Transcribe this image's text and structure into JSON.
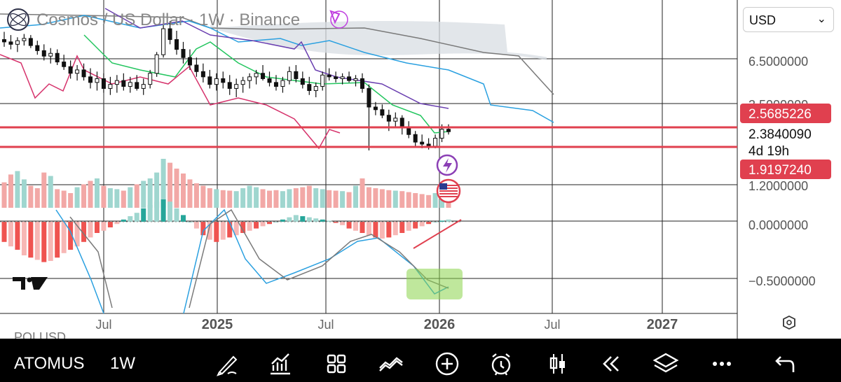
{
  "header": {
    "title": "Cosmos / US Dollar · 1W · Binance"
  },
  "currency": {
    "label": "USD"
  },
  "price_labels": {
    "p_upper": "2.5685226",
    "p_current": "2.3840090",
    "countdown": "4d 19h",
    "p_lower": "1.9197240"
  },
  "bottom_bar": {
    "symbol": "ATOMUS",
    "timeframe": "1W",
    "partial_label": "POLUSD"
  },
  "colors": {
    "up": "#26a69a",
    "down": "#ef5350",
    "red_line": "#e0404f",
    "cloud": "#d8dde3",
    "kijun": "#6a3fb0",
    "tenkan": "#22c55e",
    "chikou": "#d6336c",
    "senkou_b": "#7a7a7a",
    "senkou_a": "#2aa0e0"
  },
  "chart_data": {
    "type": "candlestick",
    "title": "Cosmos / US Dollar · 1W · Binance",
    "x_ticks": [
      "Jul",
      "2025",
      "Jul",
      "2026",
      "Jul",
      "2027"
    ],
    "y_ticks": [
      "6.5000000",
      "3.5000000",
      "1.2000000",
      "0.0000000",
      "−0.5000000"
    ],
    "horizontal_levels": [
      2.5685226,
      1.919724
    ],
    "current_price": 2.384009,
    "scale": "log",
    "candles_ohlc": [
      [
        7.2,
        7.9,
        6.6,
        7.0
      ],
      [
        7.0,
        7.6,
        6.4,
        6.8
      ],
      [
        6.8,
        7.4,
        6.2,
        7.1
      ],
      [
        7.1,
        7.7,
        6.7,
        7.3
      ],
      [
        7.3,
        7.6,
        6.5,
        6.7
      ],
      [
        6.7,
        7.1,
        6.0,
        6.3
      ],
      [
        6.3,
        6.8,
        5.6,
        5.9
      ],
      [
        5.9,
        6.5,
        5.4,
        6.1
      ],
      [
        6.1,
        6.4,
        5.3,
        5.5
      ],
      [
        5.5,
        6.0,
        5.0,
        5.2
      ],
      [
        5.2,
        5.6,
        4.5,
        4.8
      ],
      [
        4.8,
        5.3,
        4.4,
        5.0
      ],
      [
        5.0,
        5.4,
        4.4,
        4.6
      ],
      [
        4.6,
        5.1,
        4.0,
        4.3
      ],
      [
        4.3,
        4.9,
        3.9,
        4.5
      ],
      [
        4.5,
        4.8,
        3.8,
        4.0
      ],
      [
        4.0,
        4.6,
        3.7,
        4.2
      ],
      [
        4.2,
        4.7,
        3.8,
        4.4
      ],
      [
        4.4,
        4.8,
        3.9,
        4.1
      ],
      [
        4.1,
        4.6,
        3.8,
        4.3
      ],
      [
        4.3,
        4.7,
        3.9,
        4.0
      ],
      [
        4.0,
        4.5,
        3.7,
        4.2
      ],
      [
        4.2,
        5.0,
        4.0,
        4.8
      ],
      [
        4.8,
        6.2,
        4.6,
        6.0
      ],
      [
        6.0,
        8.6,
        5.8,
        8.2
      ],
      [
        8.2,
        9.0,
        6.8,
        7.2
      ],
      [
        7.2,
        8.0,
        6.0,
        6.4
      ],
      [
        6.4,
        7.0,
        5.4,
        5.8
      ],
      [
        5.8,
        6.4,
        5.0,
        5.3
      ],
      [
        5.3,
        5.8,
        4.6,
        4.9
      ],
      [
        4.9,
        5.4,
        4.3,
        4.6
      ],
      [
        4.6,
        5.0,
        4.0,
        4.2
      ],
      [
        4.2,
        4.8,
        3.9,
        4.5
      ],
      [
        4.5,
        4.9,
        4.0,
        4.3
      ],
      [
        4.3,
        4.7,
        3.7,
        4.0
      ],
      [
        4.0,
        4.5,
        3.6,
        4.2
      ],
      [
        4.2,
        4.6,
        3.8,
        4.4
      ],
      [
        4.4,
        4.8,
        4.0,
        4.6
      ],
      [
        4.6,
        5.0,
        4.2,
        4.8
      ],
      [
        4.8,
        5.3,
        4.4,
        4.5
      ],
      [
        4.5,
        4.9,
        4.1,
        4.3
      ],
      [
        4.3,
        4.7,
        3.9,
        4.1
      ],
      [
        4.1,
        4.6,
        3.8,
        4.4
      ],
      [
        4.4,
        5.2,
        4.2,
        4.9
      ],
      [
        4.9,
        5.3,
        4.3,
        4.5
      ],
      [
        4.5,
        4.9,
        4.0,
        4.2
      ],
      [
        4.2,
        4.6,
        3.7,
        3.9
      ],
      [
        3.9,
        4.3,
        3.6,
        4.1
      ],
      [
        4.1,
        4.9,
        3.9,
        4.7
      ],
      [
        4.7,
        5.1,
        4.4,
        4.6
      ],
      [
        4.6,
        4.9,
        4.3,
        4.5
      ],
      [
        4.5,
        4.8,
        4.2,
        4.6
      ],
      [
        4.6,
        4.9,
        4.3,
        4.4
      ],
      [
        4.4,
        4.7,
        4.1,
        4.5
      ],
      [
        4.5,
        4.8,
        3.8,
        4.0
      ],
      [
        4.0,
        4.2,
        1.9,
        3.2
      ],
      [
        3.2,
        3.4,
        2.9,
        3.1
      ],
      [
        3.1,
        3.3,
        2.8,
        2.9
      ],
      [
        2.9,
        3.1,
        2.4,
        2.7
      ],
      [
        2.7,
        3.0,
        2.5,
        2.8
      ],
      [
        2.8,
        2.9,
        2.3,
        2.5
      ],
      [
        2.5,
        2.7,
        2.2,
        2.3
      ],
      [
        2.3,
        2.4,
        2.0,
        2.1
      ],
      [
        2.1,
        2.3,
        1.95,
        2.05
      ],
      [
        2.05,
        2.2,
        1.92,
        2.0
      ],
      [
        2.0,
        2.3,
        1.95,
        2.2
      ],
      [
        2.2,
        2.6,
        2.1,
        2.45
      ],
      [
        2.45,
        2.6,
        2.3,
        2.38
      ]
    ],
    "volume": [
      52,
      68,
      75,
      58,
      45,
      40,
      72,
      65,
      38,
      35,
      30,
      42,
      48,
      55,
      60,
      45,
      40,
      38,
      35,
      42,
      48,
      55,
      60,
      72,
      100,
      92,
      80,
      70,
      58,
      50,
      45,
      40,
      38,
      36,
      35,
      34,
      40,
      45,
      42,
      38,
      35,
      36,
      34,
      38,
      40,
      42,
      45,
      40,
      38,
      36,
      35,
      34,
      32,
      45,
      60,
      42,
      40,
      38,
      36,
      35,
      34,
      32,
      30,
      28,
      26,
      30,
      35,
      40
    ],
    "macd_hist": [
      -0.18,
      -0.22,
      -0.25,
      -0.3,
      -0.32,
      -0.34,
      -0.36,
      -0.35,
      -0.32,
      -0.28,
      -0.25,
      -0.22,
      -0.18,
      -0.14,
      -0.1,
      -0.08,
      -0.05,
      -0.02,
      0.02,
      0.05,
      0.08,
      0.12,
      0.15,
      0.18,
      0.2,
      0.18,
      0.12,
      0.06,
      0.0,
      -0.06,
      -0.12,
      -0.16,
      -0.18,
      -0.16,
      -0.14,
      -0.12,
      -0.1,
      -0.08,
      -0.06,
      -0.04,
      -0.02,
      0.0,
      0.02,
      0.04,
      0.06,
      0.05,
      0.04,
      0.03,
      0.02,
      0.01,
      -0.01,
      -0.03,
      -0.06,
      -0.08,
      -0.1,
      -0.12,
      -0.14,
      -0.15,
      -0.14,
      -0.12,
      -0.1,
      -0.08,
      -0.06,
      -0.04,
      -0.02,
      0.0,
      0.01,
      0.02
    ],
    "indicators": [
      "Ichimoku Cloud",
      "Volume",
      "MACD"
    ]
  },
  "toolbar_icons": [
    "draw-icon",
    "indicators-icon",
    "layout-icon",
    "compare-icon",
    "add-icon",
    "alert-icon",
    "chart-type-icon",
    "replay-icon",
    "layers-icon",
    "more-icon",
    "undo-icon"
  ]
}
